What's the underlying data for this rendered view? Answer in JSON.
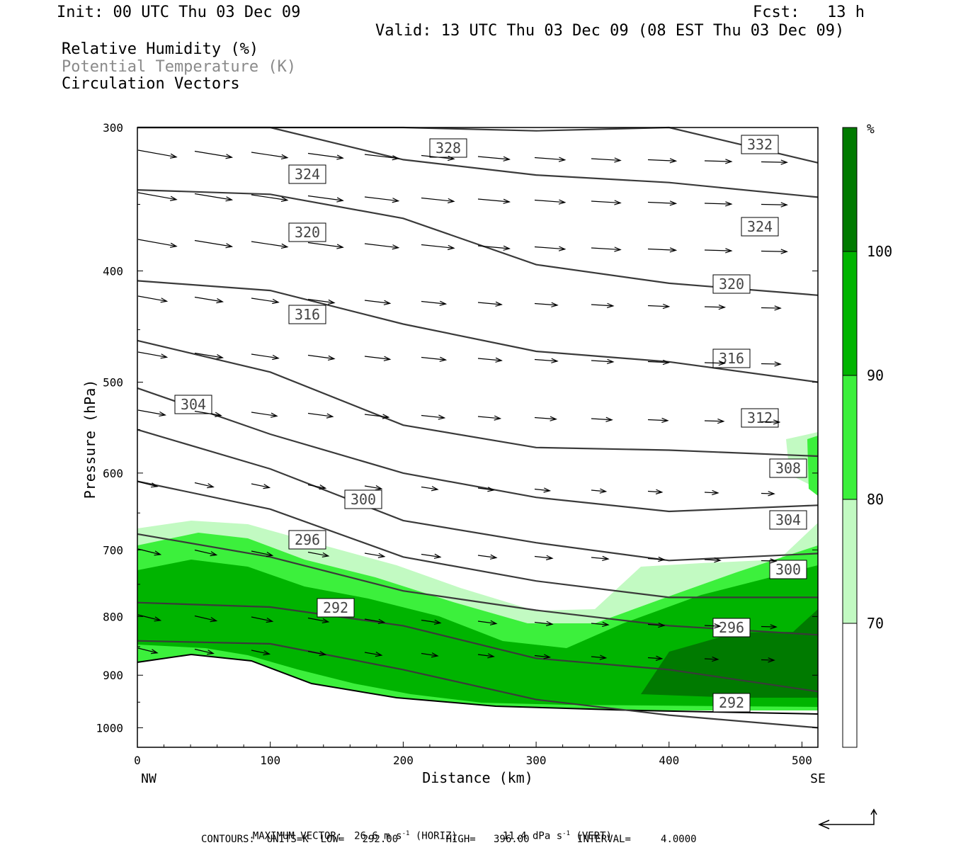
{
  "header": {
    "init": "Init: 00 UTC Thu 03 Dec 09",
    "fcst_label": "Fcst:",
    "fcst_value": "13 h",
    "valid": "Valid: 13 UTC Thu 03 Dec 09 (08 EST Thu 03 Dec 09)",
    "field1": "Relative Humidity (%)",
    "field2": "Potential Temperature (K)",
    "field3": "Circulation Vectors"
  },
  "chart_data": {
    "type": "cross-section",
    "xlabel": "Distance (km)",
    "ylabel": "Pressure (hPa)",
    "x_ticks": [
      "0",
      "100",
      "200",
      "300",
      "400",
      "500"
    ],
    "y_ticks": [
      "300",
      "400",
      "500",
      "600",
      "700",
      "800",
      "900",
      "1000"
    ],
    "xlim": [
      0,
      512
    ],
    "ylim": [
      1040,
      300
    ],
    "y_scale": "log",
    "left_end_label": "NW",
    "right_end_label": "SE",
    "colorbar": {
      "unit": "%",
      "levels": [
        "70",
        "80",
        "90",
        "100"
      ],
      "colors": [
        "#ffffff",
        "#c2fac2",
        "#3cf03c",
        "#00b400",
        "#007a00"
      ]
    },
    "theta_contour_labels": [
      "328",
      "332",
      "324",
      "324",
      "320",
      "320",
      "316",
      "316",
      "304",
      "312",
      "308",
      "300",
      "304",
      "296",
      "300",
      "292",
      "296",
      "292"
    ],
    "contours_sample": [
      {
        "label": "332",
        "x": [
          0,
          100,
          200,
          300,
          400,
          512
        ],
        "p": [
          300,
          300,
          300,
          302,
          300,
          322
        ]
      },
      {
        "label": "328",
        "x": [
          0,
          100,
          200,
          300,
          400,
          512
        ],
        "p": [
          300,
          300,
          320,
          330,
          335,
          345
        ]
      },
      {
        "label": "324",
        "x": [
          0,
          100,
          200,
          300,
          400,
          512
        ],
        "p": [
          340,
          343,
          360,
          395,
          410,
          420
        ]
      },
      {
        "label": "320",
        "x": [
          0,
          100,
          200,
          300,
          400,
          512
        ],
        "p": [
          408,
          416,
          445,
          470,
          480,
          500
        ]
      },
      {
        "label": "316",
        "x": [
          0,
          100,
          200,
          300,
          400,
          512
        ],
        "p": [
          460,
          490,
          545,
          570,
          573,
          580
        ]
      },
      {
        "label": "312",
        "x": [
          0,
          100,
          200,
          300,
          400,
          512
        ],
        "p": [
          506,
          555,
          600,
          630,
          648,
          640
        ]
      },
      {
        "label": "308",
        "x": [
          0,
          100,
          200,
          300,
          400,
          512
        ],
        "p": [
          550,
          595,
          660,
          690,
          715,
          705
        ]
      },
      {
        "label": "304",
        "x": [
          0,
          100,
          200,
          300,
          400,
          512
        ],
        "p": [
          610,
          645,
          710,
          745,
          770,
          770
        ]
      },
      {
        "label": "300",
        "x": [
          0,
          100,
          200,
          300,
          400,
          512
        ],
        "p": [
          678,
          710,
          760,
          790,
          815,
          830
        ]
      },
      {
        "label": "296",
        "x": [
          0,
          100,
          200,
          300,
          400,
          512
        ],
        "p": [
          778,
          785,
          815,
          870,
          890,
          930
        ]
      },
      {
        "label": "292",
        "x": [
          0,
          100,
          200,
          300,
          400,
          512
        ],
        "p": [
          840,
          845,
          890,
          945,
          975,
          1000
        ]
      }
    ],
    "max_vector_horiz": "26.6 m s",
    "max_vector_vert": "11.4 dPa s",
    "contour_units": "K",
    "contour_low": "292.00",
    "contour_high": "396.00",
    "contour_interval": "4.0000"
  },
  "footer": {
    "line1_a": "MAXIMUM VECTOR:  26.6 m s",
    "line1_exp1": "-1",
    "line1_b": " (HORIZ)",
    "line1_c": "11.4 dPa s",
    "line1_exp2": "-1",
    "line1_d": " (VERT)",
    "line2": "CONTOURS:  UNITS=K  LOW=   292.00        HIGH=   396.00        INTERVAL=     4.0000"
  }
}
